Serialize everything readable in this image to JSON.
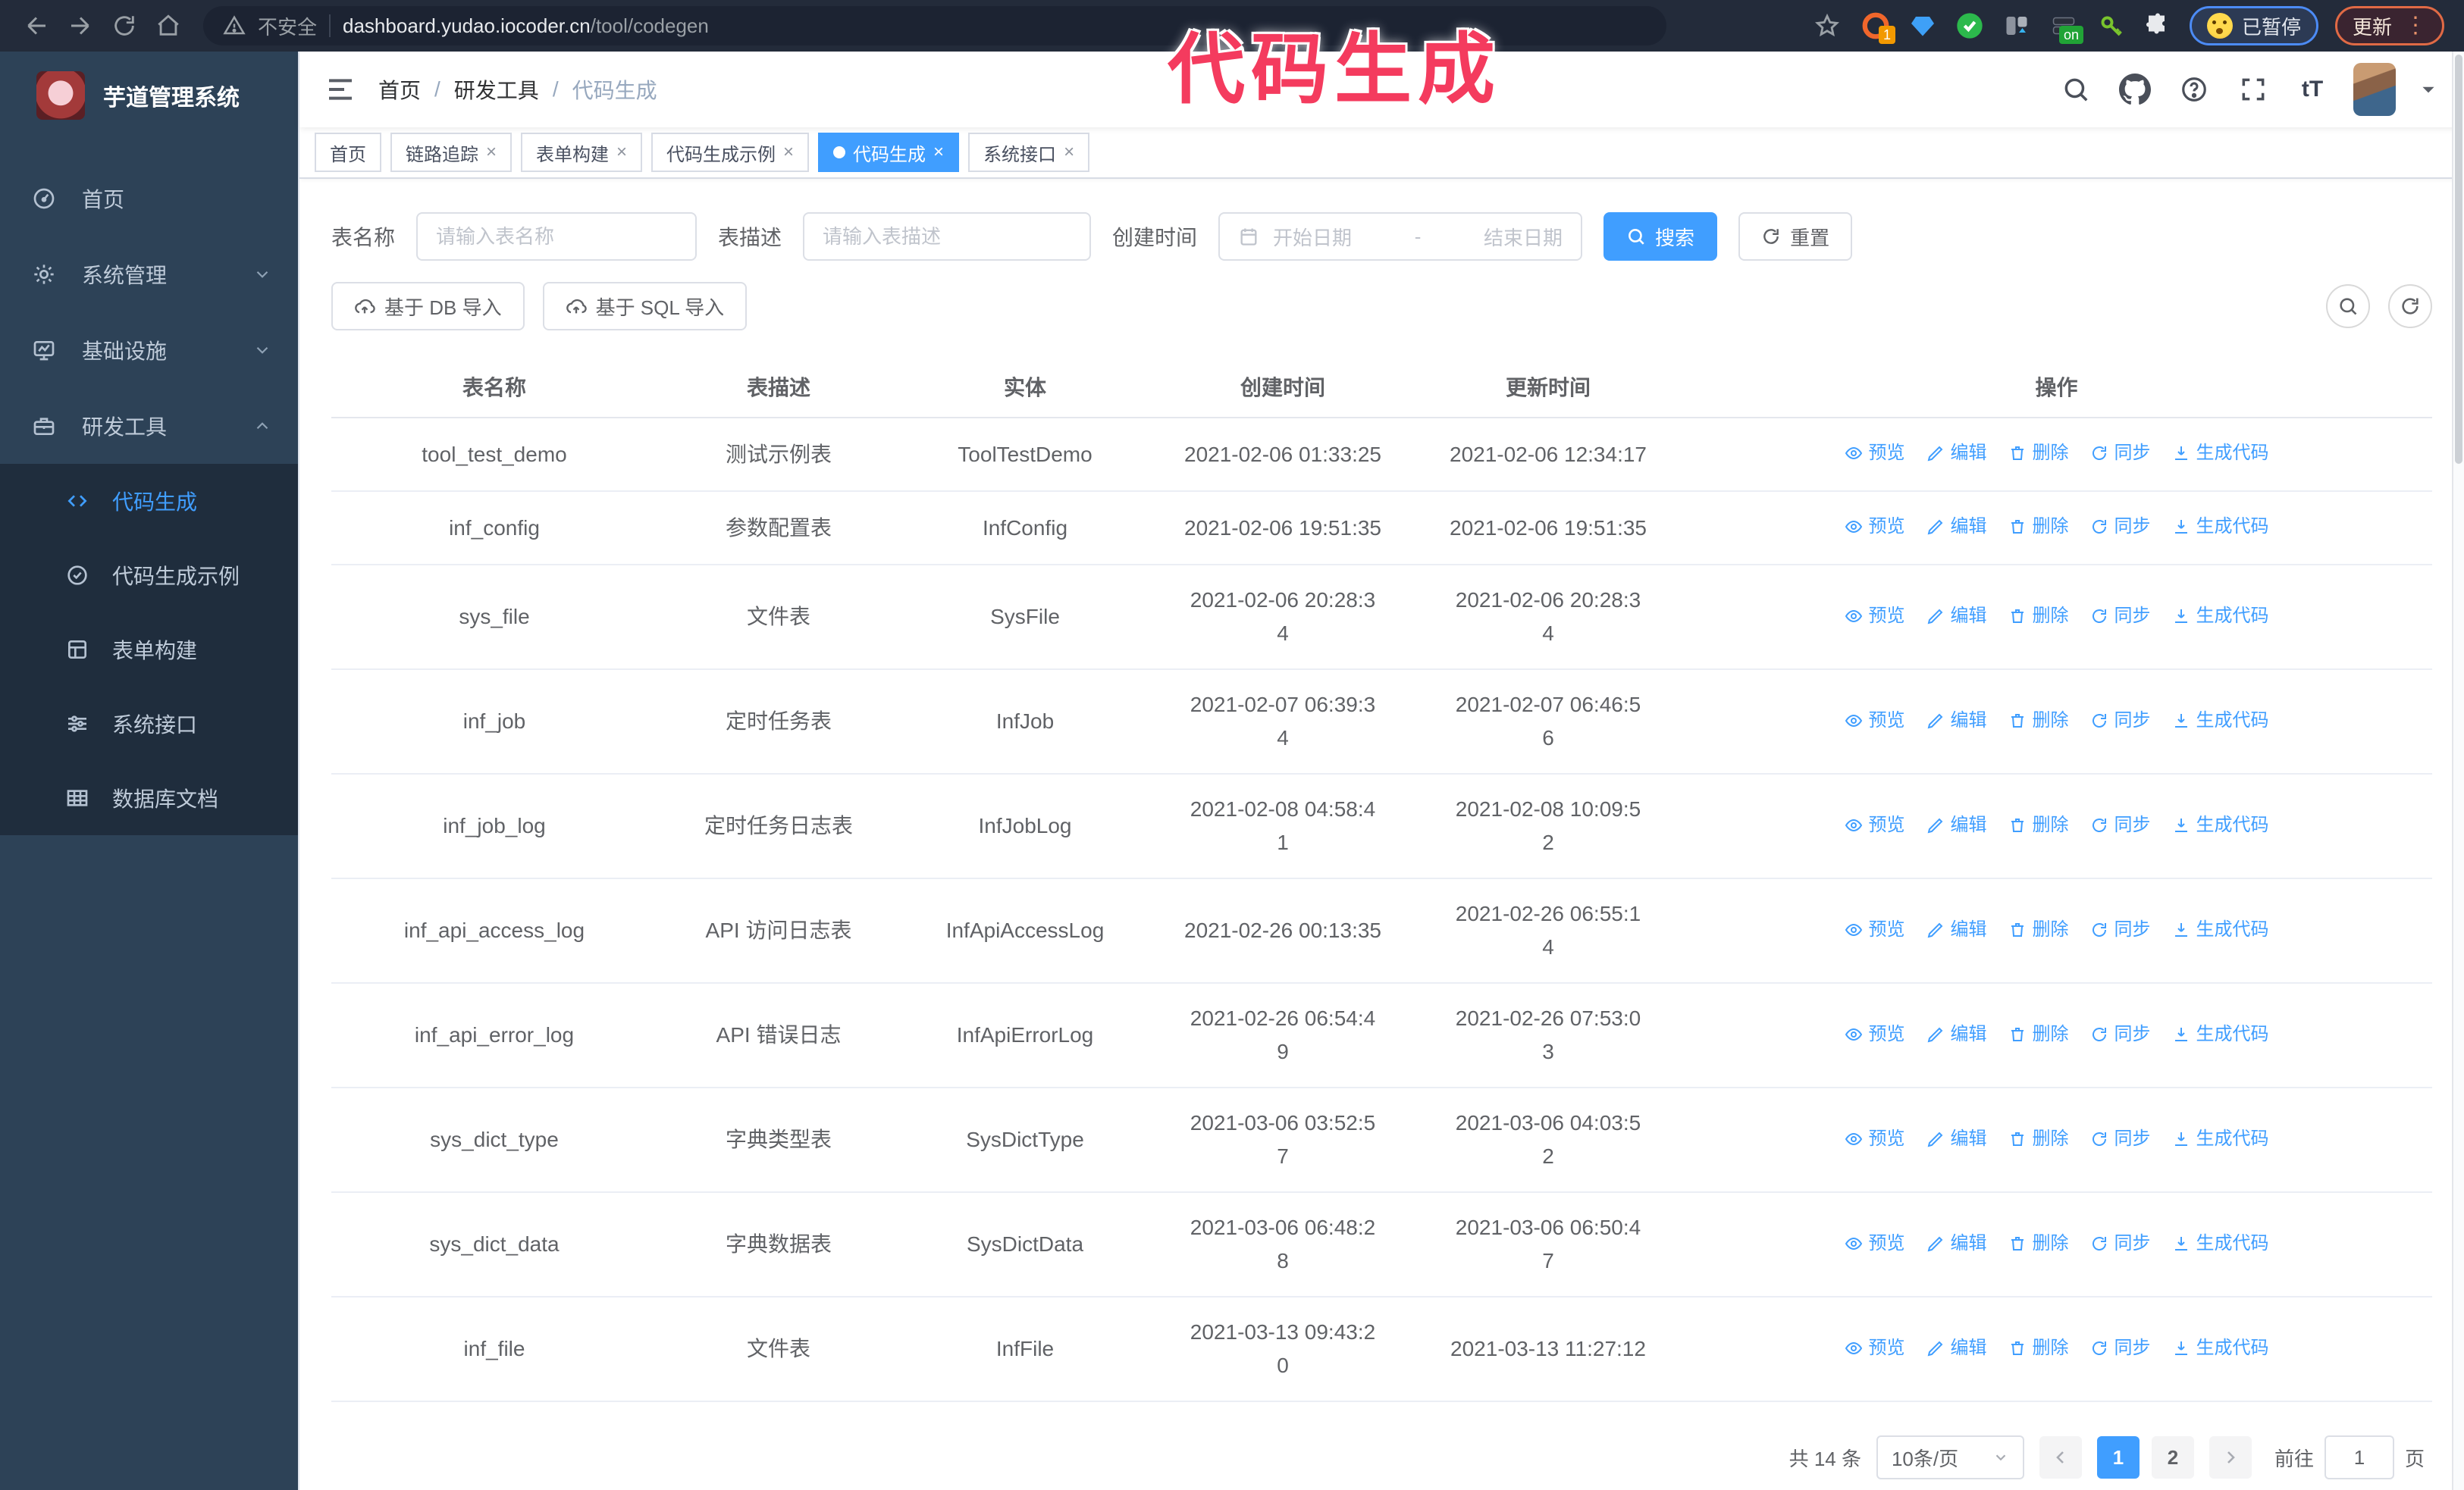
{
  "colors": {
    "primary": "#409eff",
    "sidebar": "#2d4257",
    "submenu": "#1f2d3d",
    "annotation": "#f43b5e"
  },
  "overlay_title": "代码生成",
  "browser": {
    "security_label": "不安全",
    "url_domain": "dashboard.yudao.iocoder.cn",
    "url_path": "/tool/codegen",
    "extension_badge_count": "1",
    "extension_badge_on": "on",
    "paused_label": "已暂停",
    "update_label": "更新"
  },
  "sidebar": {
    "app_title": "芋道管理系统",
    "items": [
      {
        "label": "首页",
        "icon": "dashboard",
        "expandable": false
      },
      {
        "label": "系统管理",
        "icon": "gear",
        "expandable": true,
        "expanded": false
      },
      {
        "label": "基础设施",
        "icon": "infra",
        "expandable": true,
        "expanded": false
      },
      {
        "label": "研发工具",
        "icon": "tools",
        "expandable": true,
        "expanded": true
      }
    ],
    "subitems": [
      {
        "label": "代码生成",
        "icon": "code",
        "active": true
      },
      {
        "label": "代码生成示例",
        "icon": "example",
        "active": false
      },
      {
        "label": "表单构建",
        "icon": "form",
        "active": false
      },
      {
        "label": "系统接口",
        "icon": "api",
        "active": false
      },
      {
        "label": "数据库文档",
        "icon": "dbdoc",
        "active": false
      }
    ]
  },
  "navbar": {
    "breadcrumb": [
      "首页",
      "研发工具",
      "代码生成"
    ]
  },
  "tags": [
    {
      "label": "首页",
      "closable": false,
      "active": false
    },
    {
      "label": "链路追踪",
      "closable": true,
      "active": false
    },
    {
      "label": "表单构建",
      "closable": true,
      "active": false
    },
    {
      "label": "代码生成示例",
      "closable": true,
      "active": false
    },
    {
      "label": "代码生成",
      "closable": true,
      "active": true
    },
    {
      "label": "系统接口",
      "closable": true,
      "active": false
    }
  ],
  "filters": {
    "table_name_label": "表名称",
    "table_name_placeholder": "请输入表名称",
    "table_desc_label": "表描述",
    "table_desc_placeholder": "请输入表描述",
    "create_time_label": "创建时间",
    "date_start_placeholder": "开始日期",
    "date_separator": "-",
    "date_end_placeholder": "结束日期",
    "search_label": "搜索",
    "reset_label": "重置",
    "import_db_label": "基于 DB 导入",
    "import_sql_label": "基于 SQL 导入"
  },
  "table": {
    "columns": [
      "表名称",
      "表描述",
      "实体",
      "创建时间",
      "更新时间",
      "操作"
    ],
    "action_labels": [
      "预览",
      "编辑",
      "删除",
      "同步",
      "生成代码"
    ],
    "rows": [
      {
        "name": "tool_test_demo",
        "desc": "测试示例表",
        "entity": "ToolTestDemo",
        "created": "2021-02-06 01:33:25",
        "updated": "2021-02-06 12:34:17"
      },
      {
        "name": "inf_config",
        "desc": "参数配置表",
        "entity": "InfConfig",
        "created": "2021-02-06 19:51:35",
        "updated": "2021-02-06 19:51:35"
      },
      {
        "name": "sys_file",
        "desc": "文件表",
        "entity": "SysFile",
        "created": "2021-02-06 20:28:3\n4",
        "updated": "2021-02-06 20:28:3\n4"
      },
      {
        "name": "inf_job",
        "desc": "定时任务表",
        "entity": "InfJob",
        "created": "2021-02-07 06:39:3\n4",
        "updated": "2021-02-07 06:46:5\n6"
      },
      {
        "name": "inf_job_log",
        "desc": "定时任务日志表",
        "entity": "InfJobLog",
        "created": "2021-02-08 04:58:4\n1",
        "updated": "2021-02-08 10:09:5\n2"
      },
      {
        "name": "inf_api_access_log",
        "desc": "API 访问日志表",
        "entity": "InfApiAccessLog",
        "created": "2021-02-26 00:13:35",
        "updated": "2021-02-26 06:55:1\n4"
      },
      {
        "name": "inf_api_error_log",
        "desc": "API 错误日志",
        "entity": "InfApiErrorLog",
        "created": "2021-02-26 06:54:4\n9",
        "updated": "2021-02-26 07:53:0\n3"
      },
      {
        "name": "sys_dict_type",
        "desc": "字典类型表",
        "entity": "SysDictType",
        "created": "2021-03-06 03:52:5\n7",
        "updated": "2021-03-06 04:03:5\n2"
      },
      {
        "name": "sys_dict_data",
        "desc": "字典数据表",
        "entity": "SysDictData",
        "created": "2021-03-06 06:48:2\n8",
        "updated": "2021-03-06 06:50:4\n7"
      },
      {
        "name": "inf_file",
        "desc": "文件表",
        "entity": "InfFile",
        "created": "2021-03-13 09:43:2\n0",
        "updated": "2021-03-13 11:27:12"
      }
    ]
  },
  "pagination": {
    "total": "共 14 条",
    "page_size": "10条/页",
    "pages": [
      "1",
      "2"
    ],
    "active_page": "1",
    "goto_label": "前往",
    "goto_value": "1",
    "goto_suffix": "页"
  }
}
